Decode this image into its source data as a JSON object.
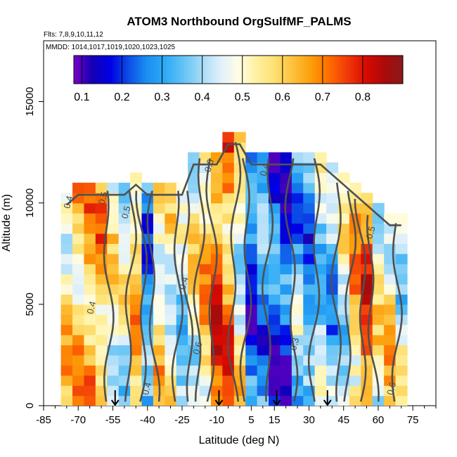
{
  "chart_data": {
    "type": "heatmap",
    "title": "ATOM3 Northbound OrgSulfMF_PALMS",
    "flights_label": "Flts: 7,8,9,10,11,12",
    "dates_label": "MMDD: 1014,1017,1019,1020,1023,1025",
    "xlabel": "Latitude (deg N)",
    "ylabel": "Altitude (m)",
    "xlim": [
      -85,
      85
    ],
    "ylim": [
      0,
      18000
    ],
    "x_ticks": [
      -85,
      -70,
      -55,
      -40,
      -25,
      -10,
      5,
      15,
      30,
      45,
      60,
      75
    ],
    "y_ticks": [
      0,
      5000,
      10000,
      15000
    ],
    "colorbar": {
      "range": [
        0.08,
        0.9
      ],
      "ticks": [
        0.1,
        0.2,
        0.3,
        0.4,
        0.5,
        0.6,
        0.7,
        0.8
      ],
      "colors": [
        "#7a00c8",
        "#1400b4",
        "#0000e6",
        "#0c4ee6",
        "#1b8ff0",
        "#2eaaf6",
        "#63c3f5",
        "#a6dbf8",
        "#dff0fb",
        "#fffde6",
        "#fff1a0",
        "#fde072",
        "#fdc03a",
        "#fd9d0a",
        "#fd6b00",
        "#f0380a",
        "#d80a00",
        "#aa0a0a",
        "#8a1a1a"
      ]
    },
    "contour_labels": [
      "0.4",
      "0.5",
      "0.6",
      "0.7",
      "0.3"
    ],
    "flight_markers_lat": [
      -54,
      -9,
      16,
      38
    ],
    "lat_columns": [
      -75,
      -70,
      -65,
      -60,
      -55,
      -50,
      -45,
      -40,
      -35,
      -30,
      -25,
      -20,
      -15,
      -10,
      -5,
      0,
      5,
      10,
      15,
      20,
      25,
      30,
      35,
      40,
      45,
      50,
      55,
      60,
      65,
      70
    ],
    "alt_rows": [
      250,
      750,
      1250,
      1750,
      2250,
      2750,
      3250,
      3750,
      4250,
      4750,
      5250,
      5750,
      6250,
      6750,
      7250,
      7750,
      8250,
      8750,
      9250,
      9750,
      10250,
      10750,
      11250,
      11750,
      12250,
      12750,
      13250
    ],
    "column_top_alt": [
      10500,
      11000,
      11000,
      11000,
      11000,
      11000,
      11500,
      11000,
      11000,
      11000,
      11000,
      12500,
      12500,
      12500,
      13500,
      13500,
      12500,
      12500,
      12500,
      12500,
      12500,
      12500,
      12500,
      12000,
      11500,
      11000,
      10500,
      10000,
      9500,
      9500
    ],
    "column_mean_value": [
      0.55,
      0.6,
      0.65,
      0.62,
      0.5,
      0.45,
      0.6,
      0.3,
      0.55,
      0.5,
      0.4,
      0.5,
      0.6,
      0.72,
      0.65,
      0.5,
      0.25,
      0.3,
      0.22,
      0.2,
      0.35,
      0.3,
      0.4,
      0.35,
      0.45,
      0.6,
      0.7,
      0.5,
      0.55,
      0.45
    ]
  }
}
